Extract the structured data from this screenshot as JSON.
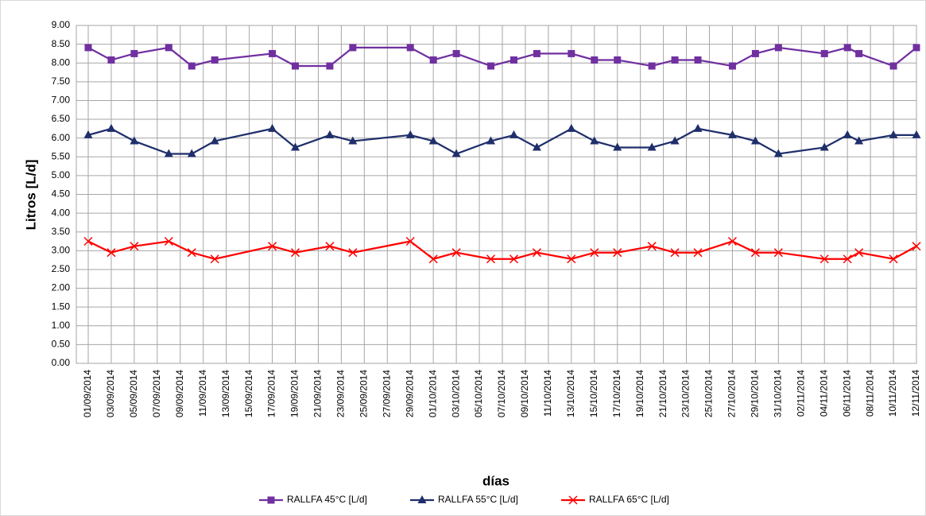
{
  "chart_data": {
    "type": "line",
    "x_label": "días",
    "y_label": "Litros [L/d]",
    "x": [
      "01/09/2014",
      "03/09/2014",
      "05/09/2014",
      "08/09/2014",
      "10/09/2014",
      "12/09/2014",
      "17/09/2014",
      "19/09/2014",
      "22/09/2014",
      "24/09/2014",
      "29/09/2014",
      "01/10/2014",
      "03/10/2014",
      "06/10/2014",
      "08/10/2014",
      "10/10/2014",
      "13/10/2014",
      "15/10/2014",
      "17/10/2014",
      "20/10/2014",
      "22/10/2014",
      "24/10/2014",
      "27/10/2014",
      "29/10/2014",
      "31/10/2014",
      "04/11/2014",
      "06/11/2014",
      "07/11/2014",
      "10/11/2014",
      "12/11/2014"
    ],
    "series": [
      {
        "name": "RALLFA 45°C [L/d]",
        "color": "#7030a0",
        "marker": "square",
        "values": [
          8.41,
          8.08,
          8.25,
          8.41,
          7.92,
          8.08,
          8.25,
          7.92,
          7.92,
          8.41,
          8.41,
          8.08,
          8.25,
          7.92,
          8.08,
          8.25,
          8.25,
          8.08,
          8.08,
          7.92,
          8.08,
          8.08,
          7.92,
          8.25,
          8.41,
          8.25,
          8.41,
          8.25,
          7.92,
          8.41
        ]
      },
      {
        "name": "RALLFA 55°C [L/d]",
        "color": "#1f2f6b",
        "marker": "triangle",
        "values": [
          6.08,
          6.25,
          5.92,
          5.58,
          5.58,
          5.92,
          6.25,
          5.75,
          6.08,
          5.92,
          6.08,
          5.92,
          5.58,
          5.92,
          6.08,
          5.75,
          6.25,
          5.92,
          5.75,
          5.75,
          5.92,
          6.25,
          6.08,
          5.92,
          5.58,
          5.75,
          6.08,
          5.92,
          6.08,
          6.08
        ]
      },
      {
        "name": "RALLFA 65°C [L/d]",
        "color": "#ff0000",
        "marker": "x",
        "values": [
          3.25,
          2.95,
          3.12,
          3.25,
          2.95,
          2.78,
          3.12,
          2.95,
          3.12,
          2.95,
          3.25,
          2.78,
          2.95,
          2.78,
          2.78,
          2.95,
          2.78,
          2.95,
          2.95,
          3.12,
          2.95,
          2.95,
          3.25,
          2.95,
          2.95,
          2.78,
          2.78,
          2.95,
          2.78,
          3.12
        ]
      }
    ],
    "xlim": [
      "01/09/2014",
      "12/11/2014"
    ],
    "xticks": [
      "01/09/2014",
      "03/09/2014",
      "05/09/2014",
      "07/09/2014",
      "09/09/2014",
      "11/09/2014",
      "13/09/2014",
      "15/09/2014",
      "17/09/2014",
      "19/09/2014",
      "21/09/2014",
      "23/09/2014",
      "25/09/2014",
      "27/09/2014",
      "29/09/2014",
      "01/10/2014",
      "03/10/2014",
      "05/10/2014",
      "07/10/2014",
      "09/10/2014",
      "11/10/2014",
      "13/10/2014",
      "15/10/2014",
      "17/10/2014",
      "19/10/2014",
      "21/10/2014",
      "23/10/2014",
      "25/10/2014",
      "27/10/2014",
      "29/10/2014",
      "31/10/2014",
      "02/11/2014",
      "04/11/2014",
      "06/11/2014",
      "08/11/2014",
      "10/11/2014",
      "12/11/2014"
    ],
    "ylim": [
      0,
      9
    ],
    "yticks": [
      {
        "value": 0,
        "label": "0.00"
      },
      {
        "value": 0.5,
        "label": "0.50"
      },
      {
        "value": 1,
        "label": "1.00"
      },
      {
        "value": 1.5,
        "label": "1.50"
      },
      {
        "value": 2,
        "label": "2.00"
      },
      {
        "value": 2.5,
        "label": "2.50"
      },
      {
        "value": 3,
        "label": "3.00"
      },
      {
        "value": 3.5,
        "label": "3.50"
      },
      {
        "value": 4,
        "label": "4.00"
      },
      {
        "value": 4.5,
        "label": "4.50"
      },
      {
        "value": 5,
        "label": "5.00"
      },
      {
        "value": 5.5,
        "label": "5.50"
      },
      {
        "value": 6,
        "label": "6.00"
      },
      {
        "value": 6.5,
        "label": "6.50"
      },
      {
        "value": 7,
        "label": "7.00"
      },
      {
        "value": 7.5,
        "label": "7.50"
      },
      {
        "value": 8,
        "label": "8.00"
      },
      {
        "value": 8.5,
        "label": "8.50"
      },
      {
        "value": 9,
        "label": "9.00"
      }
    ],
    "grid": true,
    "legend": "bottom"
  }
}
